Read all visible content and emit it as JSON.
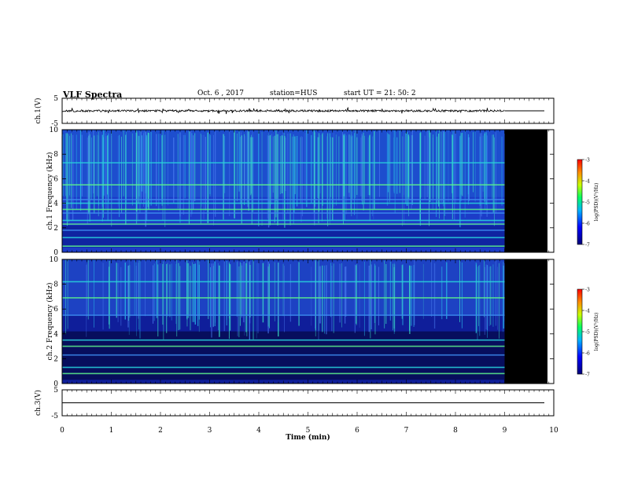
{
  "header": {
    "title": "VLF Spectra",
    "date": "Oct. 6 , 2017",
    "station": "station=HUS",
    "start": "start  UT =   21: 50: 2"
  },
  "chart_data": [
    {
      "type": "line",
      "panel": "ch1-waveform",
      "ylabel": "ch.1(V)",
      "ylim": [
        -5,
        5
      ],
      "yticks": [
        "5",
        "-5"
      ],
      "xlim": [
        0,
        10
      ],
      "note_values": {
        "signal_end_min": 9.0,
        "flat_level_V": 0
      }
    },
    {
      "type": "heatmap",
      "panel": "ch1-spectrogram",
      "ylabel": "ch.1 Frequency (kHz)",
      "ylim": [
        0,
        10
      ],
      "yticks": [
        "0",
        "2",
        "4",
        "6",
        "8",
        "10"
      ],
      "xlim": [
        0,
        10
      ],
      "data_end_min": 9.0,
      "bands_khz": [
        0.5,
        1.2,
        1.8,
        2.3,
        2.6,
        3.2,
        3.5,
        4.0,
        4.3,
        5.5,
        7.3
      ],
      "colorbar": {
        "label": "log(PSD)(V²/Hz)",
        "range": [
          -7,
          -3
        ],
        "ticks": [
          "-3",
          "-4",
          "-5",
          "-6",
          "-7"
        ]
      }
    },
    {
      "type": "heatmap",
      "panel": "ch2-spectrogram",
      "ylabel": "ch.2 Frequency (kHz)",
      "ylim": [
        0,
        10
      ],
      "yticks": [
        "0",
        "2",
        "4",
        "6",
        "8",
        "10"
      ],
      "xlim": [
        0,
        10
      ],
      "data_end_min": 9.0,
      "bands_khz": [
        0.8,
        1.3,
        2.3,
        3.0,
        3.5,
        5.5,
        6.9,
        8.2
      ],
      "colorbar": {
        "label": "log(PSD)(V²/Hz)",
        "range": [
          -7,
          -3
        ],
        "ticks": [
          "-3",
          "-4",
          "-5",
          "-6",
          "-7"
        ]
      }
    },
    {
      "type": "line",
      "panel": "ch3-waveform",
      "ylabel": "ch.3(V)",
      "ylim": [
        -5,
        5
      ],
      "yticks": [
        "5",
        "-5"
      ],
      "xlim": [
        0,
        10
      ],
      "xlabel": "Time  (min)",
      "xticks": [
        "0",
        "1",
        "2",
        "3",
        "4",
        "5",
        "6",
        "7",
        "8",
        "9",
        "10"
      ],
      "note_values": {
        "flat_level_V": 0
      }
    }
  ],
  "colors": {
    "background_data": "#000000",
    "axis": "#000000"
  }
}
